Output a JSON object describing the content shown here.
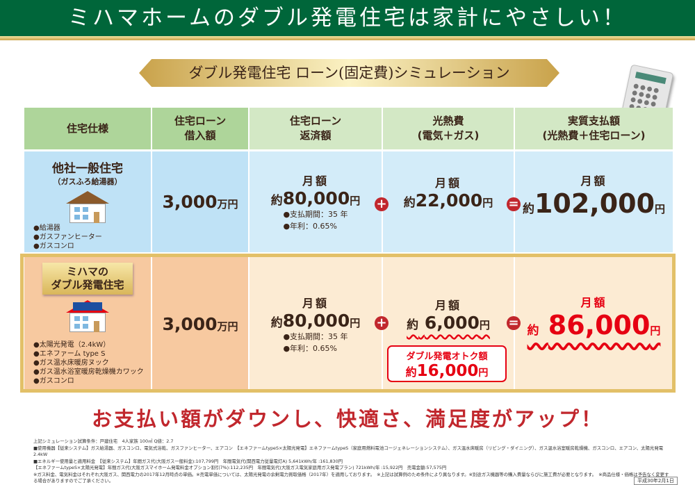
{
  "banner": {
    "title": "ミハマホームのダブル発電住宅は家計にやさしい！"
  },
  "ribbon": {
    "title": "ダブル発電住宅 ローン(固定費)シミュレーション"
  },
  "table": {
    "headers": [
      "住宅仕様",
      "住宅ローン\n借入額",
      "住宅ローン\n返済額",
      "光熱費\n(電気＋ガス)",
      "実質支払額\n(光熱費＋住宅ローン)"
    ],
    "headers_lines": [
      [
        "住宅仕様"
      ],
      [
        "住宅ローン",
        "借入額"
      ],
      [
        "住宅ローン",
        "返済額"
      ],
      [
        "光熱費",
        "(電気＋ガス)"
      ],
      [
        "実質支払額",
        "(光熱費＋住宅ローン)"
      ]
    ],
    "rows": [
      {
        "name": "他社一般住宅",
        "sub": "（ガスふろ給湯器）",
        "equipment": [
          "●給湯器",
          "●ガスファンヒーター",
          "●ガスコンロ"
        ],
        "loan": "3,000",
        "loan_unit": "万円",
        "monthly_label": "月額",
        "about": "約",
        "repay": "80,000",
        "yen": "円",
        "terms": [
          "●支払期間：35 年",
          "●年利：0.65%"
        ],
        "utility": "22,000",
        "total": "102,000"
      },
      {
        "name": "ミハマの\nダブル発電住宅",
        "name_lines": [
          "ミハマの",
          "ダブル発電住宅"
        ],
        "equipment": [
          "●太陽光発電（2.4kW）",
          "●エネファーム type S",
          "●ガス温水床暖房ヌック",
          "●ガス温水浴室暖房乾燥機カワック",
          "●ガスコンロ"
        ],
        "loan": "3,000",
        "loan_unit": "万円",
        "monthly_label": "月額",
        "about": "約",
        "repay": "80,000",
        "yen": "円",
        "terms": [
          "●支払期間：35 年",
          "●年利：0.65%"
        ],
        "utility": "6,000",
        "total": "86,000",
        "savings_label": "ダブル発電オトク額",
        "savings": "16,000"
      }
    ],
    "operators": {
      "plus": "+",
      "equals": "="
    }
  },
  "slogan": "お支払い額がダウンし、快適さ、満足度がアップ！",
  "footnotes": [
    "上記シミュレーション試算条件：戸建住宅　4人家族 100㎡ Q値：2.7",
    "■使用機器【従来システム】ガス給湯器、ガスコンロ、電気式浴乾、ガスファンヒーター、エアコン　【エネファームtypeS×太陽光発電】エネファームtypeS（家庭用燃料電池コージェネレーションシステム）、ガス温水床暖房（リビング・ダイニング）、ガス温水浴室暖房乾燥機、ガスコンロ、エアコン、太陽光発電2.4kW",
    "■エネルギー使用量と適用料金　【従来システム】年間ガス代(大阪ガス一般料金):107,799円　年間電気代(関西電力従量電灯A) 5,641kWh/年 :161,830円",
    "【エネファームtypeS×太陽光発電】年間ガス代(大阪ガスマイホーム発電料金オプション割引7%):112,235円　年間電気代(大阪ガス電気家庭用ガス発電プラン) 721kWh/年 :15,922円　売電金額:57,575円",
    "※ガス料金、電気料金はそれぞれ大阪ガス、関西電力の2017年12月時点の単価。※売電単価については、太陽光発電の余剰電力買取価格（2017年）を適用しております。　※上記は試算例のため条件により異なります。※別途ガス機器等の購入費量ならびに施工費が必要となります。　※商品仕様・価格は予告なく変更する場合がありますのでご了承ください。"
  ],
  "date": "平成30年2月1日",
  "colors": {
    "banner": "#00663a",
    "accent_red": "#e60012",
    "operator": "#c1272d",
    "gold": "#e2c068"
  }
}
